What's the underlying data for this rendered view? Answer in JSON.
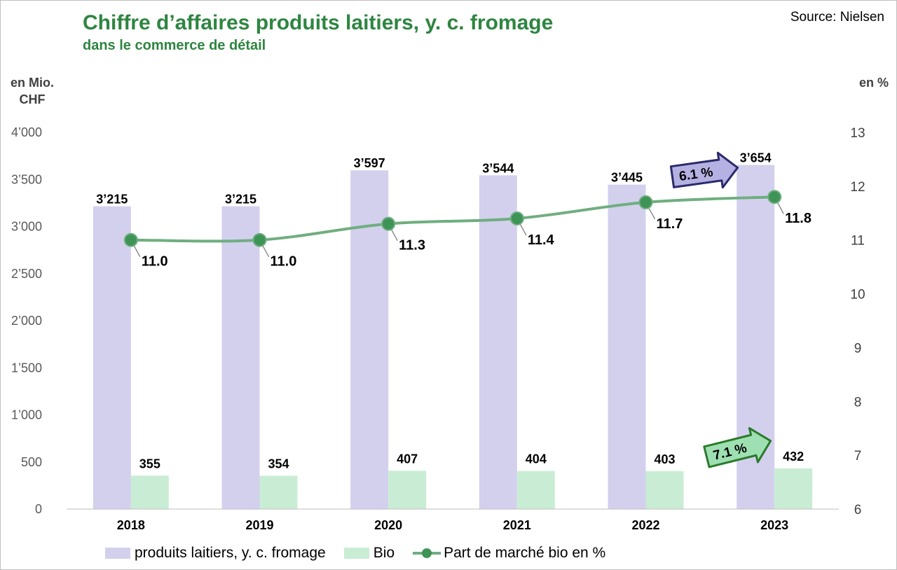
{
  "header": {
    "title": "Chiffre d’affaires produits laitiers, y. c. fromage",
    "subtitle": "dans le commerce de détail",
    "source": "Source:  Nielsen"
  },
  "axes": {
    "left_unit_line1": "en Mio.",
    "left_unit_line2": "CHF",
    "right_unit": "en %"
  },
  "colors": {
    "total_bar": "#d3d0ed",
    "bio_bar": "#c9edd4",
    "share_line": "#6fae80",
    "share_dot": "#3e9456",
    "title": "#2e8540",
    "callout_blue_fill": "#b5b2e3",
    "callout_blue_stroke": "#2b2a6b",
    "callout_green_fill": "#9fe0b2",
    "callout_green_stroke": "#2b7a2b"
  },
  "chart_data": {
    "type": "bar",
    "categories": [
      "2018",
      "2019",
      "2020",
      "2021",
      "2022",
      "2023"
    ],
    "series": [
      {
        "name": "produits laitiers, y. c. fromage",
        "axis": "left",
        "values": [
          3215,
          3215,
          3597,
          3544,
          3445,
          3654
        ],
        "labels": [
          "3’215",
          "3’215",
          "3’597",
          "3’544",
          "3’445",
          "3’654"
        ]
      },
      {
        "name": "Bio",
        "axis": "left",
        "values": [
          355,
          354,
          407,
          404,
          403,
          432
        ],
        "labels": [
          "355",
          "354",
          "407",
          "404",
          "403",
          "432"
        ]
      },
      {
        "name": "Part de marché bio en %",
        "type": "line",
        "axis": "right",
        "values": [
          11.0,
          11.0,
          11.3,
          11.4,
          11.7,
          11.8
        ],
        "labels": [
          "11.0",
          "11.0",
          "11.3",
          "11.4",
          "11.7",
          "11.8"
        ]
      }
    ],
    "ylim_left": [
      0,
      4000
    ],
    "yticks_left": [
      "0",
      "500",
      "1’000",
      "1’500",
      "2’000",
      "2’500",
      "3’000",
      "3’500",
      "4’000"
    ],
    "ylim_right": [
      6,
      13
    ],
    "yticks_right": [
      "6",
      "7",
      "8",
      "9",
      "10",
      "11",
      "12",
      "13"
    ],
    "annotations": [
      {
        "text": "6.1 %",
        "target": "produits laitiers, y. c. fromage"
      },
      {
        "text": "7.1 %",
        "target": "Bio"
      }
    ],
    "grid": false,
    "legend_position": "bottom"
  }
}
